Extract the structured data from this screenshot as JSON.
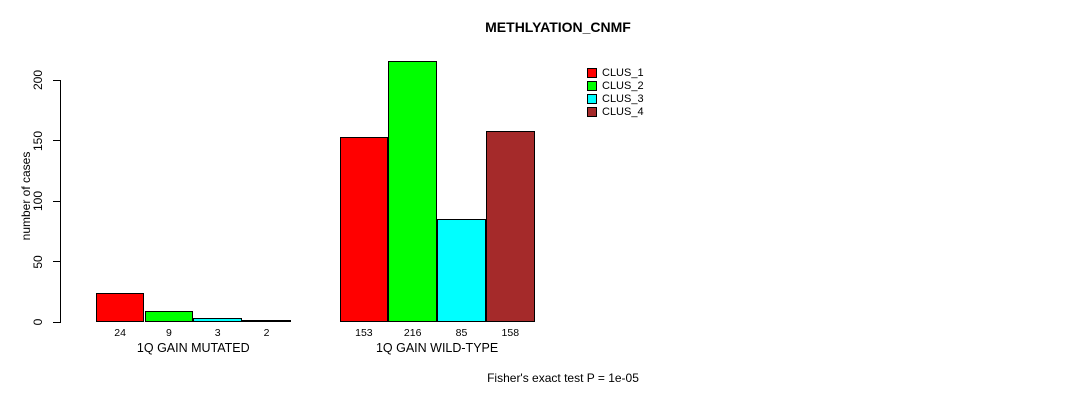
{
  "title": "METHLYATION_CNMF",
  "chart_data": {
    "type": "bar",
    "title": "METHLYATION_CNMF",
    "ylabel": "number of cases",
    "xlabel": "",
    "yticks": [
      0,
      50,
      100,
      150,
      200
    ],
    "ylim": [
      0,
      216
    ],
    "grid": false,
    "legend_position": "top-right",
    "categories": [
      "1Q GAIN MUTATED",
      "1Q GAIN WILD-TYPE"
    ],
    "series": [
      {
        "name": "CLUS_1",
        "color": "#ff0000",
        "values": [
          24,
          153
        ]
      },
      {
        "name": "CLUS_2",
        "color": "#00ff00",
        "values": [
          9,
          216
        ]
      },
      {
        "name": "CLUS_3",
        "color": "#00ffff",
        "values": [
          3,
          85
        ]
      },
      {
        "name": "CLUS_4",
        "color": "#a52a2a",
        "values": [
          2,
          158
        ]
      }
    ],
    "bar_value_labels": {
      "1Q GAIN MUTATED": [
        24,
        9,
        3,
        2
      ],
      "1Q GAIN WILD-TYPE": [
        153,
        216,
        85,
        158
      ]
    },
    "annotation": "Fisher's exact test P = 1e-05"
  },
  "legend": {
    "items": [
      {
        "label": "CLUS_1",
        "color": "#ff0000"
      },
      {
        "label": "CLUS_2",
        "color": "#00ff00"
      },
      {
        "label": "CLUS_3",
        "color": "#00ffff"
      },
      {
        "label": "CLUS_4",
        "color": "#a52a2a"
      }
    ]
  },
  "footer": {
    "text": "Fisher's exact test P = 1e-05"
  }
}
